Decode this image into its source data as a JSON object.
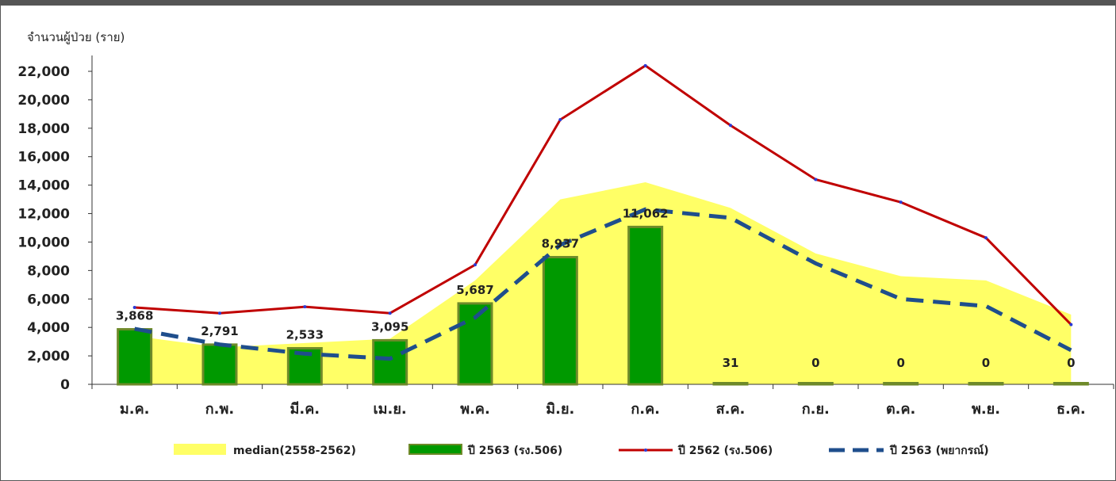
{
  "chart_data": {
    "type": "bar",
    "ylabel": "จำนวนผู้ป่วย (ราย)",
    "ylim": [
      0,
      22000
    ],
    "yticks": [
      0,
      2000,
      4000,
      6000,
      8000,
      10000,
      12000,
      14000,
      16000,
      18000,
      20000,
      22000
    ],
    "ytick_labels": [
      "0",
      "2,000",
      "4,000",
      "6,000",
      "8,000",
      "10,000",
      "12,000",
      "14,000",
      "16,000",
      "18,000",
      "20,000",
      "22,000"
    ],
    "categories": [
      "ม.ค.",
      "ก.พ.",
      "มี.ค.",
      "เม.ย.",
      "พ.ค.",
      "มิ.ย.",
      "ก.ค.",
      "ส.ค.",
      "ก.ย.",
      "ต.ค.",
      "พ.ย.",
      "ธ.ค."
    ],
    "series": [
      {
        "name": "median(2558-2562)",
        "kind": "area",
        "color": "#ffff66",
        "values": [
          3400,
          2600,
          2900,
          3200,
          7300,
          13000,
          14200,
          12400,
          9200,
          7600,
          7300,
          4900
        ]
      },
      {
        "name": "ปี 2563 (รง.506)",
        "kind": "bar",
        "color": "#009900",
        "values": [
          3868,
          2791,
          2533,
          3095,
          5687,
          8937,
          11062,
          31,
          0,
          0,
          0,
          0
        ],
        "labels": [
          "3,868",
          "2,791",
          "2,533",
          "3,095",
          "5,687",
          "8,937",
          "11,062",
          "31",
          "0",
          "0",
          "0",
          "0"
        ]
      },
      {
        "name": "ปี 2562 (รง.506)",
        "kind": "line",
        "color": "#c00000",
        "values": [
          5400,
          5000,
          5450,
          5000,
          8400,
          18600,
          22400,
          18200,
          14400,
          12800,
          10300,
          4200
        ]
      },
      {
        "name": "ปี 2563 (พยากรณ์)",
        "kind": "dashed",
        "color": "#1f4e8c",
        "values": [
          3900,
          2800,
          2150,
          1800,
          4700,
          9800,
          12300,
          11700,
          8500,
          6000,
          5500,
          2400
        ]
      }
    ],
    "legend_position": "bottom"
  }
}
